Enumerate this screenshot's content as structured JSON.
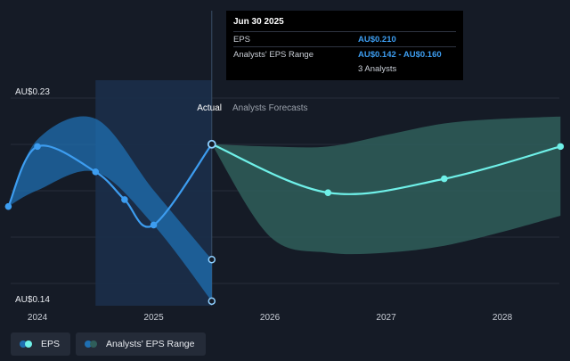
{
  "colors": {
    "eps": "#3d9df0",
    "forecast": "#6ff0e8",
    "range_actual": "#1f6fb2",
    "range_forecast": "#2f5e5a"
  },
  "sections": {
    "actual": "Actual",
    "forecast": "Analysts Forecasts"
  },
  "tooltip": {
    "date": "Jun 30 2025",
    "rows": [
      {
        "label": "EPS",
        "value": "AU$0.210"
      },
      {
        "label": "Analysts' EPS Range",
        "value": "AU$0.142 - AU$0.160"
      },
      {
        "label": "",
        "value": "3 Analysts"
      }
    ]
  },
  "legend": [
    {
      "label": "EPS",
      "icon": "eps-dots-icon"
    },
    {
      "label": "Analysts' EPS Range",
      "icon": "range-dots-icon"
    }
  ],
  "chart_data": {
    "type": "line",
    "x_ticks": [
      "2024",
      "2025",
      "2026",
      "2027",
      "2028"
    ],
    "x_tick_values": [
      2024,
      2025,
      2026,
      2027,
      2028
    ],
    "y_labels": [
      "AU$0.23",
      "AU$0.14"
    ],
    "ylim": [
      0.14,
      0.23
    ],
    "xlim": [
      2023.77,
      2028.49
    ],
    "actual_end": 2025.5,
    "series": [
      {
        "name": "EPS",
        "points": [
          {
            "x": 2023.75,
            "y": 0.183
          },
          {
            "x": 2024.0,
            "y": 0.209
          },
          {
            "x": 2024.5,
            "y": 0.198
          },
          {
            "x": 2024.75,
            "y": 0.186
          },
          {
            "x": 2025.0,
            "y": 0.175
          },
          {
            "x": 2025.5,
            "y": 0.21
          }
        ]
      },
      {
        "name": "Analysts Forecasts",
        "points": [
          {
            "x": 2025.5,
            "y": 0.21
          },
          {
            "x": 2026.5,
            "y": 0.189
          },
          {
            "x": 2027.5,
            "y": 0.195
          },
          {
            "x": 2028.5,
            "y": 0.209
          }
        ]
      }
    ],
    "range_actual": {
      "x": [
        2023.75,
        2024.0,
        2024.5,
        2025.0,
        2025.5
      ],
      "low": [
        0.183,
        0.19,
        0.198,
        0.175,
        0.142
      ],
      "high": [
        0.183,
        0.212,
        0.221,
        0.19,
        0.16
      ]
    },
    "range_forecast": {
      "x": [
        2025.5,
        2026.0,
        2026.5,
        2027.0,
        2027.5,
        2028.0,
        2028.5
      ],
      "low": [
        0.21,
        0.17,
        0.163,
        0.163,
        0.166,
        0.172,
        0.179
      ],
      "high": [
        0.21,
        0.209,
        0.209,
        0.214,
        0.219,
        0.221,
        0.222
      ]
    },
    "grid": true
  }
}
